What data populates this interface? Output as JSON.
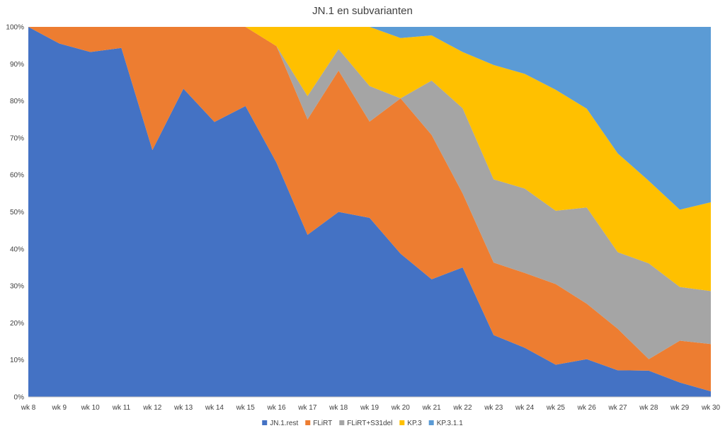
{
  "chart_data": {
    "type": "area",
    "stacked": "percent",
    "title": "JN.1 en subvarianten",
    "categories": [
      "wk 8",
      "wk 9",
      "wk 10",
      "wk 11",
      "wk 12",
      "wk 13",
      "wk 14",
      "wk 15",
      "wk 16",
      "wk 17",
      "wk 18",
      "wk 19",
      "wk 20",
      "wk 21",
      "wk 22",
      "wk 23",
      "wk 24",
      "wk 25",
      "wk 26",
      "wk 27",
      "wk 28",
      "wk 29",
      "wk 30"
    ],
    "y_ticks": [
      "0%",
      "10%",
      "20%",
      "30%",
      "40%",
      "50%",
      "60%",
      "70%",
      "80%",
      "90%",
      "100%"
    ],
    "ylim": [
      0,
      100
    ],
    "legend_position": "bottom",
    "series": [
      {
        "name": "JN.1.rest",
        "color": "#4472C4",
        "values": [
          100,
          95.5,
          93.2,
          94.3,
          66.7,
          83.3,
          74.3,
          78.6,
          63.3,
          43.8,
          50,
          48.4,
          38.7,
          31.8,
          35,
          16.7,
          13.3,
          8.7,
          10.2,
          7.2,
          7.1,
          3.9,
          1.5
        ]
      },
      {
        "name": "FLiRT",
        "color": "#ED7D31",
        "values": [
          0,
          4.5,
          6.8,
          5.7,
          33.3,
          16.7,
          25.7,
          21.4,
          31.5,
          31.2,
          38.2,
          26,
          42,
          39,
          20,
          19.6,
          20.2,
          21.8,
          15,
          11.2,
          3.1,
          11.3,
          12.8
        ]
      },
      {
        "name": "FLiRT+S31del",
        "color": "#A5A5A5",
        "values": [
          0,
          0,
          0,
          0,
          0,
          0,
          0,
          0,
          0,
          6.3,
          5.8,
          9.6,
          0,
          14.7,
          23,
          22.5,
          22.8,
          19.8,
          26,
          20.7,
          25.9,
          14.5,
          14.3
        ]
      },
      {
        "name": "KP.3",
        "color": "#FFC000",
        "values": [
          0,
          0,
          0,
          0,
          0,
          0,
          0,
          0,
          5.2,
          18.7,
          6,
          16,
          16.3,
          12.2,
          15.2,
          30.9,
          31,
          32.7,
          26.7,
          26.7,
          22.3,
          20.9,
          24
        ]
      },
      {
        "name": "KP.3.1.1",
        "color": "#5B9BD5",
        "values": [
          0,
          0,
          0,
          0,
          0,
          0,
          0,
          0,
          0,
          0,
          0,
          0,
          3,
          2.3,
          6.8,
          10.3,
          12.7,
          17,
          22.1,
          34.2,
          41.6,
          49.4,
          47.4
        ]
      }
    ]
  }
}
